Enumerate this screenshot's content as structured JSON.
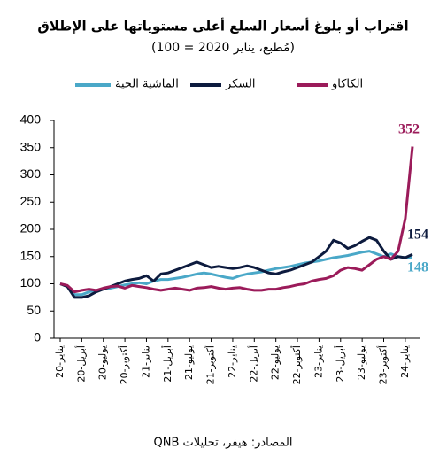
{
  "chart_data": {
    "type": "line",
    "title": "اقتراب أو بلوغ أسعار السلع أعلى مستوياتها على الإطلاق",
    "subtitle": "(مُطبع، يناير 2020 = 100)",
    "source": "المصادر: هيفر، تحليلات QNB",
    "categories": [
      "يناير-20",
      null,
      null,
      "أبريل-20",
      null,
      null,
      "يوليو-20",
      null,
      null,
      "أكتوبر-20",
      null,
      null,
      "يناير-21",
      null,
      null,
      "أبريل-21",
      null,
      null,
      "يوليو-21",
      null,
      null,
      "أكتوبر-21",
      null,
      null,
      "يناير-22",
      null,
      null,
      "أبريل-22",
      null,
      null,
      "يوليو-22",
      null,
      null,
      "أكتوبر-22",
      null,
      null,
      "يناير-23",
      null,
      null,
      "أبريل-23",
      null,
      null,
      "يوليو-23",
      null,
      null,
      "أكتوبر-23",
      null,
      null,
      "يناير-24",
      null
    ],
    "series": [
      {
        "name": "الماشية الحية",
        "color": "#4aa8c8",
        "values": [
          100,
          95,
          80,
          80,
          85,
          88,
          90,
          92,
          95,
          98,
          100,
          102,
          100,
          105,
          108,
          108,
          110,
          112,
          115,
          118,
          120,
          118,
          115,
          112,
          110,
          115,
          118,
          120,
          122,
          125,
          128,
          130,
          132,
          135,
          138,
          140,
          142,
          145,
          148,
          150,
          152,
          155,
          158,
          160,
          155,
          150,
          155,
          150,
          148,
          148
        ]
      },
      {
        "name": "السكر",
        "color": "#0d1b3e",
        "values": [
          100,
          95,
          75,
          75,
          78,
          85,
          90,
          95,
          100,
          105,
          108,
          110,
          115,
          105,
          118,
          120,
          125,
          130,
          135,
          140,
          135,
          130,
          132,
          130,
          128,
          130,
          133,
          130,
          125,
          120,
          118,
          122,
          125,
          130,
          135,
          140,
          150,
          160,
          180,
          175,
          165,
          170,
          178,
          185,
          180,
          160,
          145,
          150,
          148,
          154
        ]
      },
      {
        "name": "الكاكاو",
        "color": "#9b1b5a",
        "values": [
          100,
          97,
          85,
          88,
          90,
          88,
          92,
          95,
          96,
          92,
          97,
          95,
          93,
          90,
          88,
          90,
          92,
          90,
          88,
          92,
          93,
          95,
          92,
          90,
          92,
          93,
          90,
          88,
          88,
          90,
          90,
          93,
          95,
          98,
          100,
          105,
          108,
          110,
          115,
          125,
          130,
          128,
          125,
          135,
          145,
          150,
          145,
          160,
          220,
          352
        ]
      }
    ],
    "ylim": [
      0,
      400
    ],
    "yticks": [
      0,
      50,
      100,
      150,
      200,
      250,
      300,
      350,
      400
    ]
  }
}
